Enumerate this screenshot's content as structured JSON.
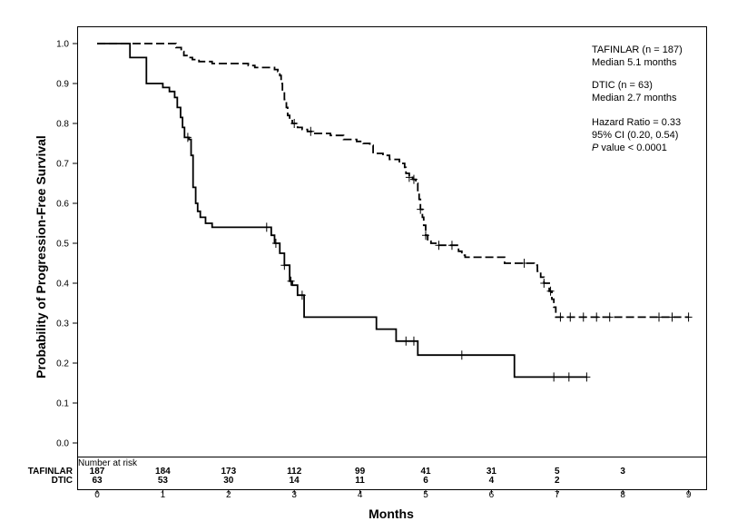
{
  "chart_data": {
    "type": "line",
    "title": "",
    "xlabel": "Months",
    "ylabel": "Probability of Progression-Free Survival",
    "xlim": [
      0,
      9
    ],
    "ylim": [
      0,
      1
    ],
    "xticks": [
      "0",
      "1",
      "2",
      "3",
      "4",
      "5",
      "6",
      "7",
      "8",
      "9"
    ],
    "yticks": [
      "0.0",
      "0.1",
      "0.2",
      "0.3",
      "0.4",
      "0.5",
      "0.6",
      "0.7",
      "0.8",
      "0.9",
      "1.0"
    ],
    "grid": false,
    "legend_position": "top-right",
    "legend": [
      {
        "line1": "TAFINLAR (n = 187)",
        "line2": "Median 5.1 months"
      },
      {
        "line1": "DTIC (n = 63)",
        "line2": "Median 2.7 months"
      }
    ],
    "stats": {
      "hr": "Hazard Ratio = 0.33",
      "ci": "95% CI (0.20, 0.54)",
      "p_italic": "P",
      "p_rest": " value < 0.0001"
    },
    "series": [
      {
        "name": "TAFINLAR",
        "style": "dashed",
        "steps": [
          [
            0,
            1.0
          ],
          [
            1.2,
            0.99
          ],
          [
            1.28,
            0.98
          ],
          [
            1.32,
            0.97
          ],
          [
            1.38,
            0.965
          ],
          [
            1.45,
            0.96
          ],
          [
            1.55,
            0.955
          ],
          [
            1.75,
            0.95
          ],
          [
            2.3,
            0.945
          ],
          [
            2.4,
            0.94
          ],
          [
            2.7,
            0.935
          ],
          [
            2.75,
            0.93
          ],
          [
            2.78,
            0.92
          ],
          [
            2.8,
            0.9
          ],
          [
            2.82,
            0.88
          ],
          [
            2.85,
            0.86
          ],
          [
            2.88,
            0.84
          ],
          [
            2.9,
            0.82
          ],
          [
            2.93,
            0.81
          ],
          [
            2.97,
            0.8
          ],
          [
            3.05,
            0.79
          ],
          [
            3.12,
            0.785
          ],
          [
            3.2,
            0.78
          ],
          [
            3.3,
            0.775
          ],
          [
            3.55,
            0.77
          ],
          [
            3.75,
            0.76
          ],
          [
            3.95,
            0.755
          ],
          [
            4.05,
            0.75
          ],
          [
            4.15,
            0.745
          ],
          [
            4.2,
            0.725
          ],
          [
            4.35,
            0.72
          ],
          [
            4.45,
            0.71
          ],
          [
            4.6,
            0.7
          ],
          [
            4.68,
            0.69
          ],
          [
            4.7,
            0.675
          ],
          [
            4.75,
            0.665
          ],
          [
            4.8,
            0.66
          ],
          [
            4.85,
            0.65
          ],
          [
            4.88,
            0.63
          ],
          [
            4.9,
            0.61
          ],
          [
            4.92,
            0.585
          ],
          [
            4.95,
            0.565
          ],
          [
            4.97,
            0.545
          ],
          [
            5.0,
            0.52
          ],
          [
            5.03,
            0.505
          ],
          [
            5.08,
            0.5
          ],
          [
            5.2,
            0.495
          ],
          [
            5.5,
            0.48
          ],
          [
            5.55,
            0.47
          ],
          [
            5.6,
            0.465
          ],
          [
            6.2,
            0.45
          ],
          [
            6.65,
            0.445
          ],
          [
            6.7,
            0.43
          ],
          [
            6.75,
            0.415
          ],
          [
            6.8,
            0.4
          ],
          [
            6.88,
            0.38
          ],
          [
            6.92,
            0.36
          ],
          [
            6.95,
            0.34
          ],
          [
            6.98,
            0.315
          ]
        ],
        "end_x": 9.0,
        "censor_x": [
          3.0,
          3.25,
          4.75,
          4.82,
          4.92,
          5.0,
          5.2,
          5.4,
          6.5,
          6.8,
          6.9,
          7.05,
          7.2,
          7.4,
          7.6,
          7.8,
          8.55,
          8.75,
          9.0
        ]
      },
      {
        "name": "DTIC",
        "style": "solid",
        "steps": [
          [
            0,
            1.0
          ],
          [
            0.5,
            0.965
          ],
          [
            0.75,
            0.9
          ],
          [
            1.0,
            0.89
          ],
          [
            1.1,
            0.88
          ],
          [
            1.18,
            0.865
          ],
          [
            1.22,
            0.84
          ],
          [
            1.27,
            0.815
          ],
          [
            1.3,
            0.79
          ],
          [
            1.33,
            0.765
          ],
          [
            1.4,
            0.76
          ],
          [
            1.43,
            0.72
          ],
          [
            1.46,
            0.64
          ],
          [
            1.5,
            0.6
          ],
          [
            1.53,
            0.58
          ],
          [
            1.57,
            0.565
          ],
          [
            1.65,
            0.55
          ],
          [
            1.75,
            0.54
          ],
          [
            2.5,
            0.54
          ],
          [
            2.65,
            0.52
          ],
          [
            2.7,
            0.5
          ],
          [
            2.78,
            0.475
          ],
          [
            2.85,
            0.445
          ],
          [
            2.93,
            0.405
          ],
          [
            2.97,
            0.395
          ],
          [
            3.05,
            0.37
          ],
          [
            3.15,
            0.37
          ],
          [
            3.15,
            0.315
          ],
          [
            3.85,
            0.315
          ],
          [
            4.25,
            0.285
          ],
          [
            4.55,
            0.255
          ],
          [
            4.88,
            0.22
          ],
          [
            6.35,
            0.165
          ]
        ],
        "end_x": 7.45,
        "censor_x": [
          1.38,
          2.58,
          2.72,
          2.85,
          2.95,
          3.12,
          4.7,
          4.82,
          5.55,
          6.95,
          7.18,
          7.45
        ]
      }
    ]
  },
  "risk_table": {
    "heading": "Number at risk",
    "rows": [
      {
        "label": "TAFINLAR",
        "values": [
          "187",
          "184",
          "173",
          "112",
          "99",
          "41",
          "31",
          "5",
          "3",
          ""
        ]
      },
      {
        "label": "DTIC",
        "values": [
          "63",
          "53",
          "30",
          "14",
          "11",
          "6",
          "4",
          "2",
          "",
          ""
        ]
      }
    ]
  }
}
